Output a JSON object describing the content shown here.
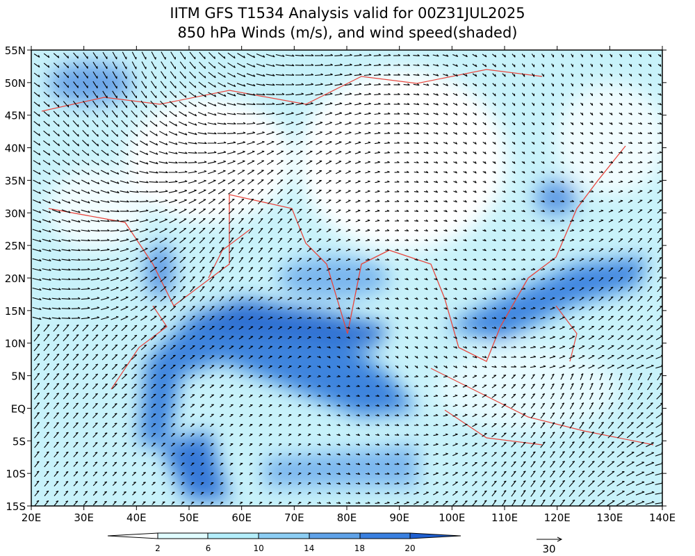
{
  "title": [
    "IITM GFS T1534 Analysis valid for 00Z31JUL2025",
    "850 hPa Winds (m/s), and wind speed(shaded)"
  ],
  "y_axis_labels": [
    "55N",
    "50N",
    "45N",
    "40N",
    "35N",
    "30N",
    "25N",
    "20N",
    "15N",
    "10N",
    "5N",
    "EQ",
    "5S",
    "10S",
    "15S"
  ],
  "x_axis_labels": [
    "20E",
    "30E",
    "40E",
    "50E",
    "60E",
    "70E",
    "80E",
    "90E",
    "100E",
    "110E",
    "120E",
    "130E",
    "140E"
  ],
  "colorbar": {
    "labels": [
      "2",
      "6",
      "10",
      "14",
      "18",
      "20"
    ]
  },
  "reference_vector": "30"
}
